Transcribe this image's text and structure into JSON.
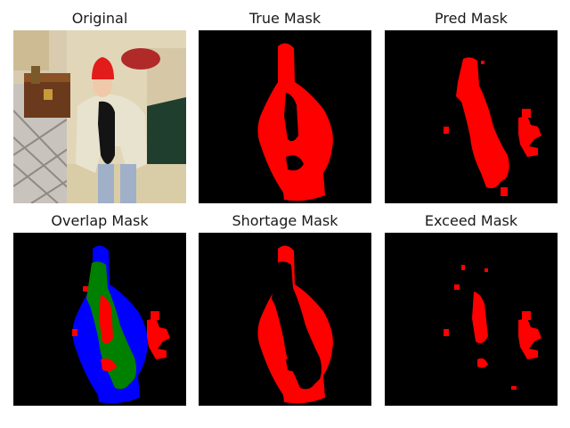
{
  "panels": [
    {
      "title": "Original"
    },
    {
      "title": "True Mask"
    },
    {
      "title": "Pred Mask"
    },
    {
      "title": "Overlap Mask"
    },
    {
      "title": "Shortage Mask"
    },
    {
      "title": "Exceed Mask"
    }
  ],
  "colors": {
    "mask_fg": "#ff0000",
    "mask_bg": "#000000",
    "overlap_true_only": "#0000ff",
    "overlap_both": "#008000",
    "overlap_pred_only": "#ff0000"
  }
}
